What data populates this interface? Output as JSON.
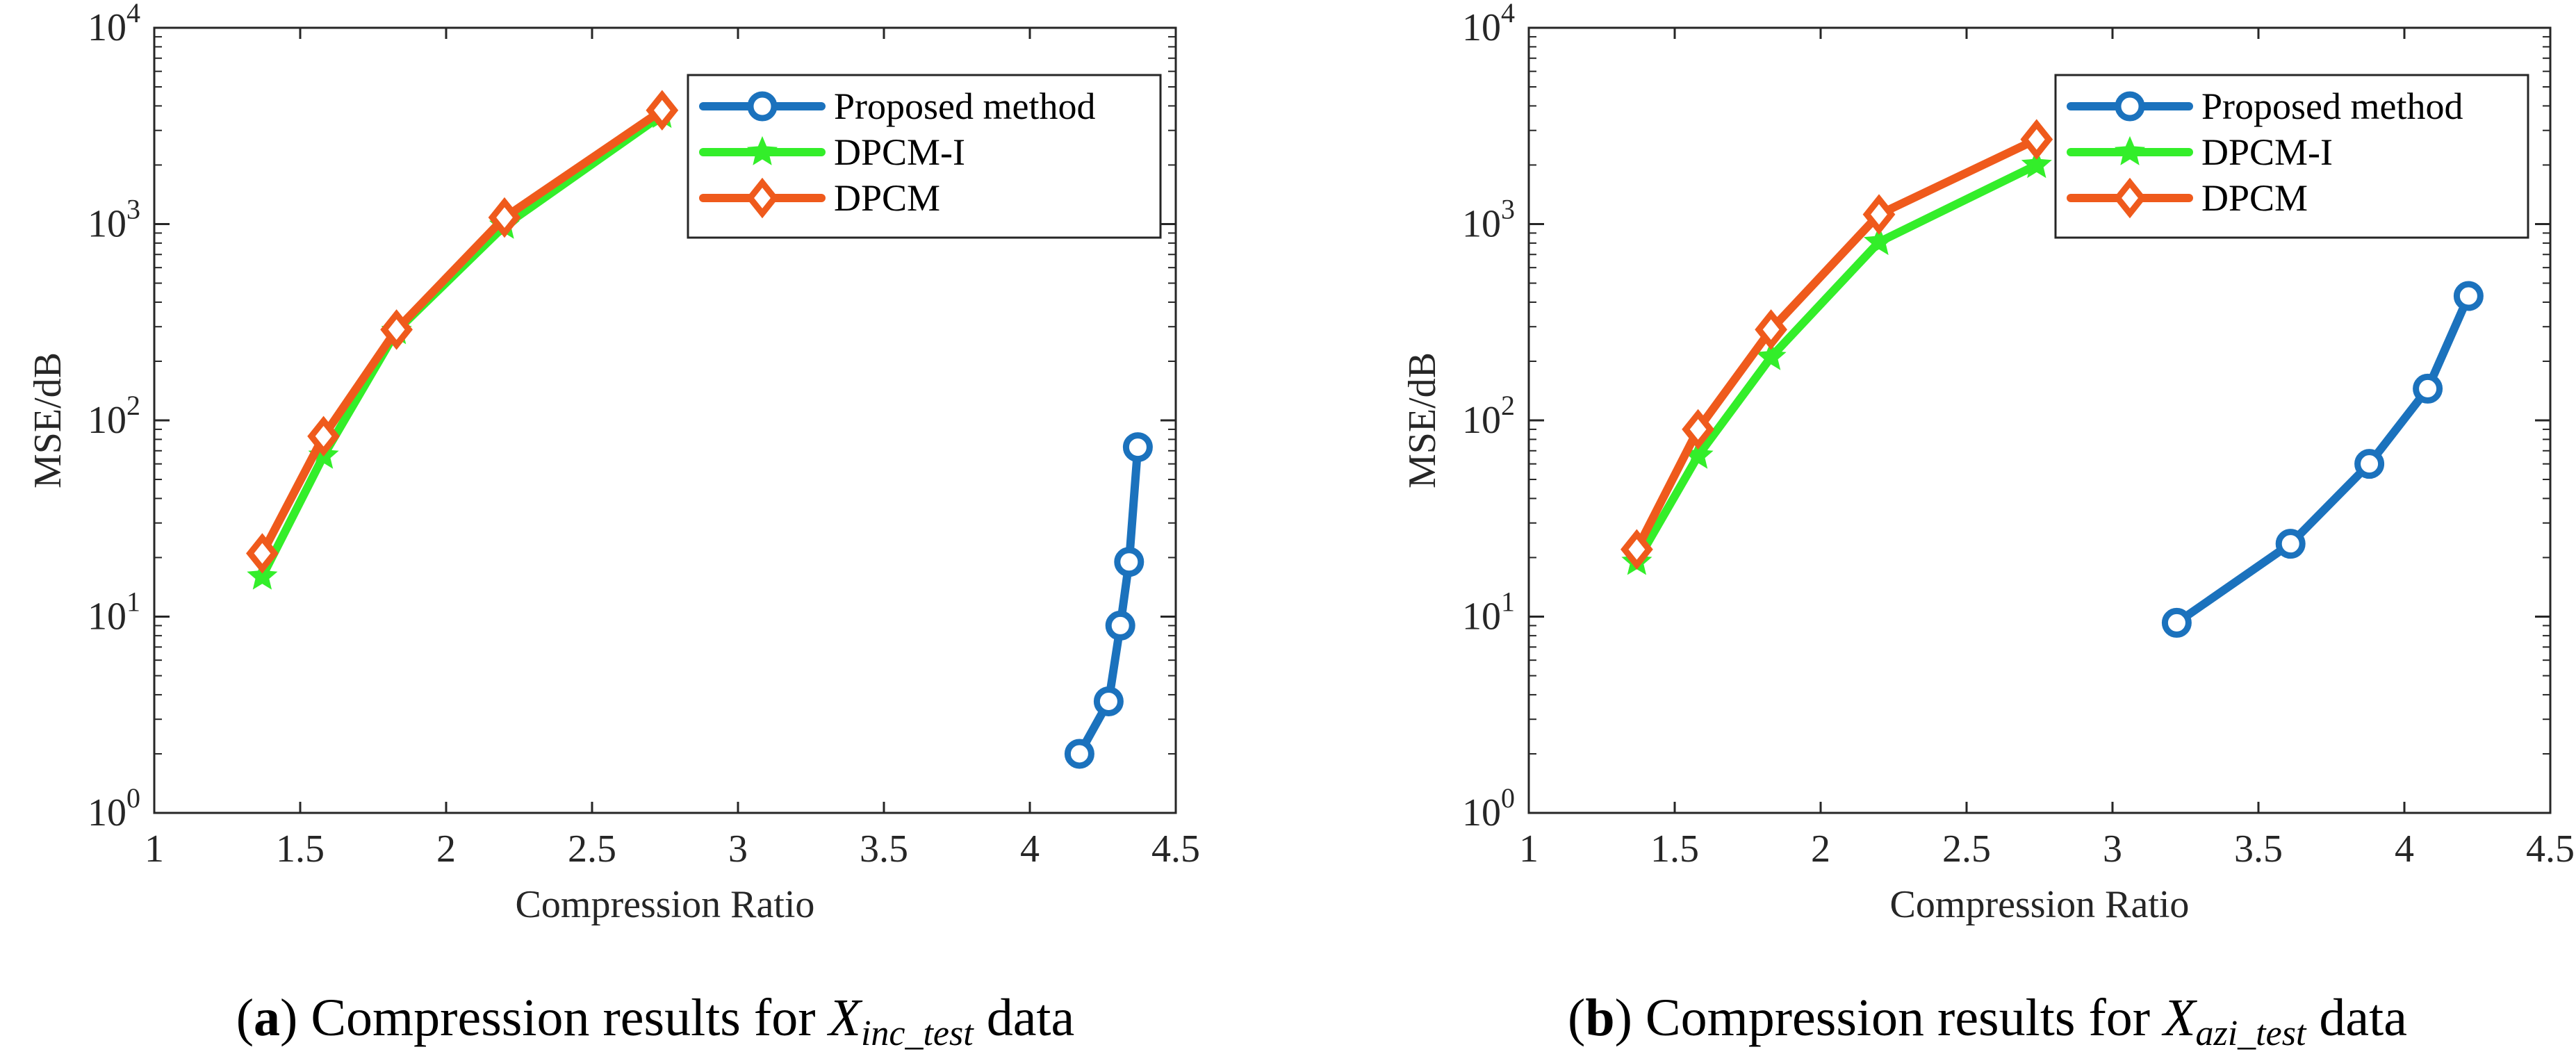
{
  "chart_data": [
    {
      "type": "line",
      "panel": "a",
      "xlabel": "Compression Ratio",
      "ylabel": "MSE/dB",
      "xlim": [
        1,
        4.5
      ],
      "ylim": [
        1,
        10000
      ],
      "yscale": "log",
      "xticks": [
        "1",
        "1.5",
        "2",
        "2.5",
        "3",
        "3.5",
        "4",
        "4.5"
      ],
      "yticks": [
        {
          "base": "10",
          "exp": "0"
        },
        {
          "base": "10",
          "exp": "1"
        },
        {
          "base": "10",
          "exp": "2"
        },
        {
          "base": "10",
          "exp": "3"
        },
        {
          "base": "10",
          "exp": "4"
        }
      ],
      "legend_position": "top-right",
      "series": [
        {
          "name": "Proposed method",
          "color": "#1b72bd",
          "marker": "circle",
          "x": [
            4.17,
            4.27,
            4.31,
            4.34,
            4.37
          ],
          "y": [
            2.0,
            3.7,
            9.0,
            19.0,
            73.0
          ]
        },
        {
          "name": "DPCM-I",
          "color": "#33ee2a",
          "marker": "star",
          "x": [
            1.37,
            1.58,
            1.83,
            2.2,
            2.74
          ],
          "y": [
            16,
            66,
            285,
            980,
            3600
          ]
        },
        {
          "name": "DPCM",
          "color": "#ef5a1c",
          "marker": "diamond",
          "x": [
            1.37,
            1.58,
            1.83,
            2.2,
            2.74
          ],
          "y": [
            21,
            83,
            290,
            1080,
            3800
          ]
        }
      ],
      "caption": {
        "label": "a",
        "text": "Compression results for",
        "var": "X",
        "sub": "inc_test",
        "suffix": "data"
      }
    },
    {
      "type": "line",
      "panel": "b",
      "xlabel": "Compression Ratio",
      "ylabel": "MSE/dB",
      "xlim": [
        1,
        4.5
      ],
      "ylim": [
        1,
        10000
      ],
      "yscale": "log",
      "xticks": [
        "1",
        "1.5",
        "2",
        "2.5",
        "3",
        "3.5",
        "4",
        "4.5"
      ],
      "yticks": [
        {
          "base": "10",
          "exp": "0"
        },
        {
          "base": "10",
          "exp": "1"
        },
        {
          "base": "10",
          "exp": "2"
        },
        {
          "base": "10",
          "exp": "3"
        },
        {
          "base": "10",
          "exp": "4"
        }
      ],
      "legend_position": "top-right",
      "series": [
        {
          "name": "Proposed method",
          "color": "#1b72bd",
          "marker": "circle",
          "x": [
            3.22,
            3.61,
            3.88,
            4.08,
            4.22
          ],
          "y": [
            9.3,
            23.5,
            60,
            145,
            430
          ]
        },
        {
          "name": "DPCM-I",
          "color": "#33ee2a",
          "marker": "star",
          "x": [
            1.37,
            1.58,
            1.83,
            2.2,
            2.74
          ],
          "y": [
            19,
            66,
            210,
            810,
            2000
          ]
        },
        {
          "name": "DPCM",
          "color": "#ef5a1c",
          "marker": "diamond",
          "x": [
            1.37,
            1.58,
            1.83,
            2.2,
            2.74
          ],
          "y": [
            22,
            90,
            290,
            1120,
            2700
          ]
        }
      ],
      "caption": {
        "label": "b",
        "text": "Compression results for",
        "var": "X",
        "sub": "azi_test",
        "suffix": "data"
      }
    }
  ]
}
